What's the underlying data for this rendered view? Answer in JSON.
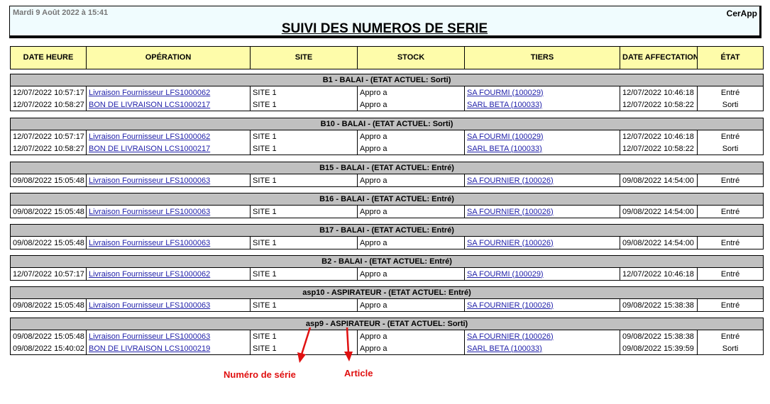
{
  "header": {
    "date": "Mardi 9 Août 2022 à 15:41",
    "brand": "CerApp",
    "title": "SUIVI DES NUMEROS DE SERIE"
  },
  "columns": [
    "DATE HEURE",
    "OPÉRATION",
    "SITE",
    "STOCK",
    "TIERS",
    "DATE AFFECTATION",
    "ÉTAT"
  ],
  "groups": [
    {
      "label": "B1 - BALAI -   (ETAT ACTUEL: Sorti)",
      "rows": [
        [
          "12/07/2022 10:57:17",
          "Livraison Fournisseur LFS1000062",
          "SITE 1",
          "Appro a",
          "SA FOURMI (100029)",
          "12/07/2022 10:46:18",
          "Entré"
        ],
        [
          "12/07/2022 10:58:27",
          "BON DE LIVRAISON LCS1000217",
          "SITE 1",
          "Appro a",
          "SARL BETA (100033)",
          "12/07/2022 10:58:22",
          "Sorti"
        ]
      ]
    },
    {
      "label": "B10 - BALAI -   (ETAT ACTUEL: Sorti)",
      "rows": [
        [
          "12/07/2022 10:57:17",
          "Livraison Fournisseur LFS1000062",
          "SITE 1",
          "Appro a",
          "SA FOURMI (100029)",
          "12/07/2022 10:46:18",
          "Entré"
        ],
        [
          "12/07/2022 10:58:27",
          "BON DE LIVRAISON LCS1000217",
          "SITE 1",
          "Appro a",
          "SARL BETA (100033)",
          "12/07/2022 10:58:22",
          "Sorti"
        ]
      ]
    },
    {
      "label": "B15 - BALAI -   (ETAT ACTUEL: Entré)",
      "rows": [
        [
          "09/08/2022 15:05:48",
          "Livraison Fournisseur LFS1000063",
          "SITE 1",
          "Appro a",
          "SA FOURNIER (100026)",
          "09/08/2022 14:54:00",
          "Entré"
        ]
      ]
    },
    {
      "label": "B16 - BALAI -   (ETAT ACTUEL: Entré)",
      "rows": [
        [
          "09/08/2022 15:05:48",
          "Livraison Fournisseur LFS1000063",
          "SITE 1",
          "Appro a",
          "SA FOURNIER (100026)",
          "09/08/2022 14:54:00",
          "Entré"
        ]
      ]
    },
    {
      "label": "B17 - BALAI -   (ETAT ACTUEL: Entré)",
      "rows": [
        [
          "09/08/2022 15:05:48",
          "Livraison Fournisseur LFS1000063",
          "SITE 1",
          "Appro a",
          "SA FOURNIER (100026)",
          "09/08/2022 14:54:00",
          "Entré"
        ]
      ]
    },
    {
      "label": "B2 - BALAI -   (ETAT ACTUEL: Entré)",
      "rows": [
        [
          "12/07/2022 10:57:17",
          "Livraison Fournisseur LFS1000062",
          "SITE 1",
          "Appro a",
          "SA FOURMI (100029)",
          "12/07/2022 10:46:18",
          "Entré"
        ]
      ]
    },
    {
      "label": "asp10 - ASPIRATEUR -   (ETAT ACTUEL: Entré)",
      "rows": [
        [
          "09/08/2022 15:05:48",
          "Livraison Fournisseur LFS1000063",
          "SITE 1",
          "Appro a",
          "SA FOURNIER (100026)",
          "09/08/2022 15:38:38",
          "Entré"
        ]
      ]
    },
    {
      "label": "asp9 - ASPIRATEUR -   (ETAT ACTUEL: Sorti)",
      "rows": [
        [
          "09/08/2022 15:05:48",
          "Livraison Fournisseur LFS1000063",
          "SITE 1",
          "Appro a",
          "SA FOURNIER (100026)",
          "09/08/2022 15:38:38",
          "Entré"
        ],
        [
          "09/08/2022 15:40:02",
          "BON DE LIVRAISON LCS1000219",
          "SITE 1",
          "Appro a",
          "SARL BETA (100033)",
          "09/08/2022 15:39:59",
          "Sorti"
        ]
      ]
    }
  ],
  "annotations": {
    "serial": "Numéro de série",
    "article": "Article",
    "color": "#e01010"
  }
}
